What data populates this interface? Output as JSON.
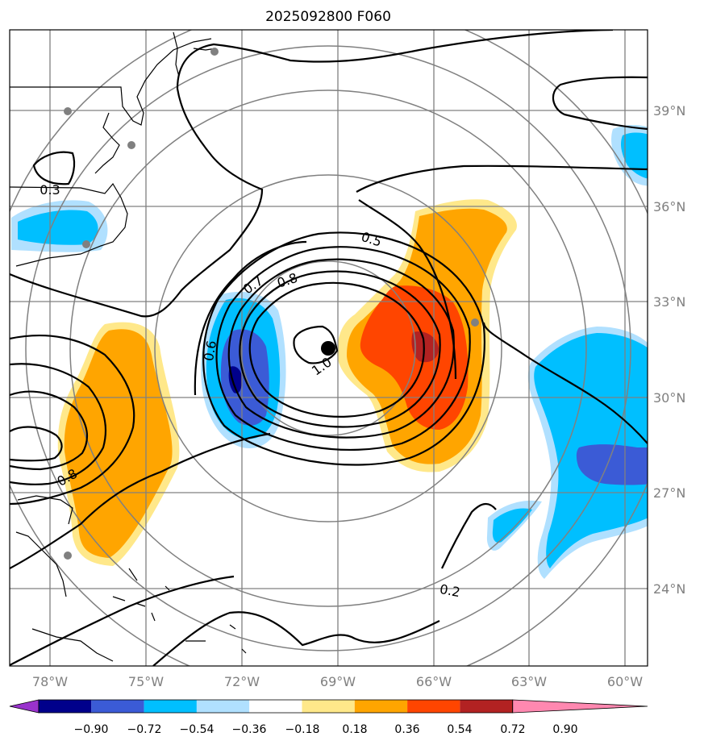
{
  "map": {
    "title": "2025092800 F060",
    "lon_labels": [
      "78°W",
      "75°W",
      "72°W",
      "69°W",
      "66°W",
      "63°W",
      "60°W"
    ],
    "lat_labels": [
      "39°N",
      "36°N",
      "33°N",
      "30°N",
      "27°N",
      "24°N"
    ],
    "contour_labels": [
      "0.3",
      "0.5",
      "0.7",
      "0.8",
      "0.6",
      "1.0",
      "0.8",
      "0.2"
    ],
    "colorbar": {
      "tick_labels": [
        "−0.90",
        "−0.72",
        "−0.54",
        "−0.36",
        "−0.18",
        "0.18",
        "0.36",
        "0.54",
        "0.72",
        "0.90"
      ],
      "colors": [
        "#9932cc",
        "#00008b",
        "#3b5bd6",
        "#00bfff",
        "#b0e0ff",
        "#ffffff",
        "#ffe88a",
        "#ffa500",
        "#ff4500",
        "#b22222",
        "#ff88b0"
      ]
    },
    "colors": {
      "frame": "#000000",
      "grid": "#808080",
      "contour": "#000000",
      "center_marker": "#000000",
      "city_marker": "#808080"
    }
  }
}
